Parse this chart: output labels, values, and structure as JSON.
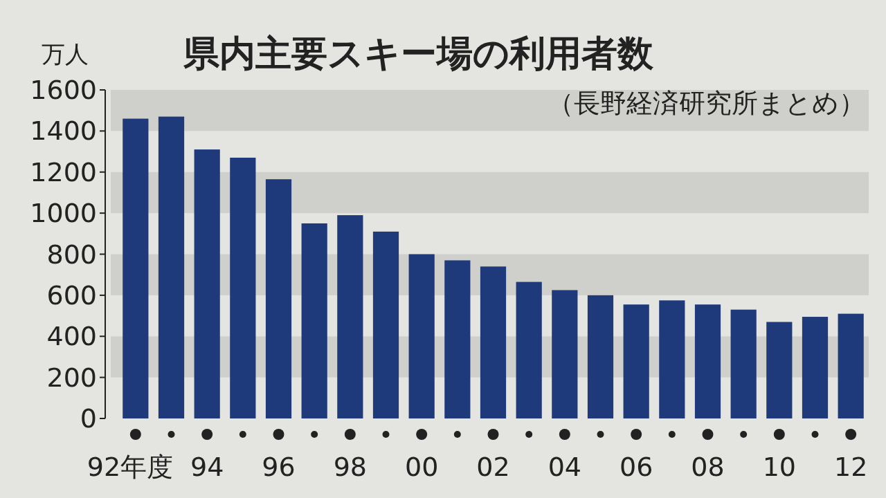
{
  "chart_data": {
    "type": "bar",
    "title": "県内主要スキー場の利用者数",
    "subtitle": "（長野経済研究所まとめ）",
    "ylabel": "万人",
    "categories": [
      "92年度",
      null,
      "94",
      null,
      "96",
      null,
      "98",
      null,
      "00",
      null,
      "02",
      null,
      "04",
      null,
      "06",
      null,
      "08",
      null,
      "10",
      null,
      "12"
    ],
    "values": [
      1460,
      1470,
      1310,
      1270,
      1165,
      950,
      990,
      910,
      800,
      770,
      740,
      665,
      625,
      600,
      555,
      575,
      555,
      530,
      470,
      495,
      510
    ],
    "color": "#1f3a7a",
    "ylim": [
      0,
      1600
    ],
    "yticks": [
      0,
      200,
      400,
      600,
      800,
      1000,
      1200,
      1400,
      1600
    ]
  }
}
